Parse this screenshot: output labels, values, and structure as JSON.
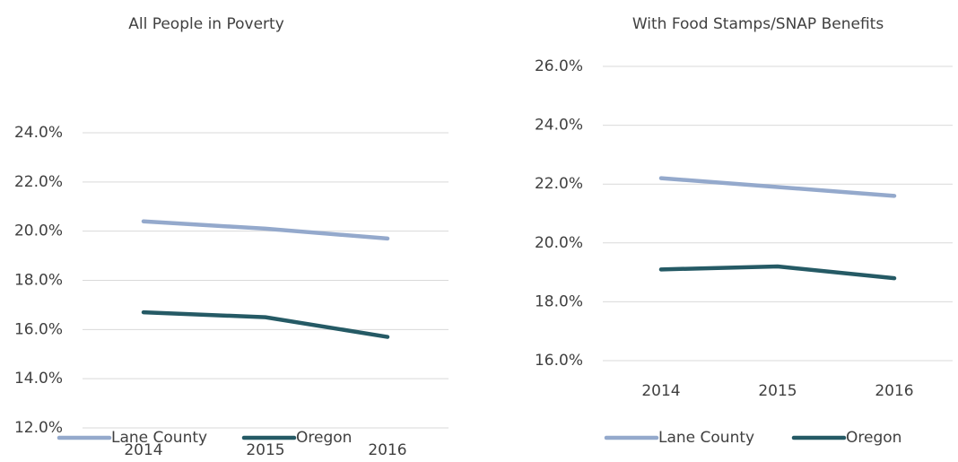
{
  "chart_data": [
    {
      "type": "line",
      "title": "All People in Poverty",
      "categories": [
        "2014",
        "2015",
        "2016"
      ],
      "series": [
        {
          "name": "Lane County",
          "color": "#94a9cc",
          "values": [
            20.4,
            20.1,
            19.7
          ]
        },
        {
          "name": "Oregon",
          "color": "#255a65",
          "values": [
            16.7,
            16.5,
            15.7
          ]
        }
      ],
      "ylim": [
        12,
        24
      ],
      "yticks": [
        {
          "value": 12,
          "label": "12.0%"
        },
        {
          "value": 14,
          "label": "14.0%"
        },
        {
          "value": 16,
          "label": "16.0%"
        },
        {
          "value": 18,
          "label": "18.0%"
        },
        {
          "value": 20,
          "label": "20.0%"
        },
        {
          "value": 22,
          "label": "22.0%"
        },
        {
          "value": 24,
          "label": "24.0%"
        }
      ],
      "grid": true,
      "legend": "bottom"
    },
    {
      "type": "line",
      "title": "With Food Stamps/SNAP Benefits",
      "categories": [
        "2014",
        "2015",
        "2016"
      ],
      "series": [
        {
          "name": "Lane County",
          "color": "#94a9cc",
          "values": [
            22.2,
            21.9,
            21.6
          ]
        },
        {
          "name": "Oregon",
          "color": "#255a65",
          "values": [
            19.1,
            19.2,
            18.8
          ]
        }
      ],
      "ylim": [
        16,
        26
      ],
      "yticks": [
        {
          "value": 16,
          "label": "16.0%"
        },
        {
          "value": 18,
          "label": "18.0%"
        },
        {
          "value": 20,
          "label": "20.0%"
        },
        {
          "value": 22,
          "label": "22.0%"
        },
        {
          "value": 24,
          "label": "24.0%"
        },
        {
          "value": 26,
          "label": "26.0%"
        }
      ],
      "grid": true,
      "legend": "bottom"
    }
  ]
}
